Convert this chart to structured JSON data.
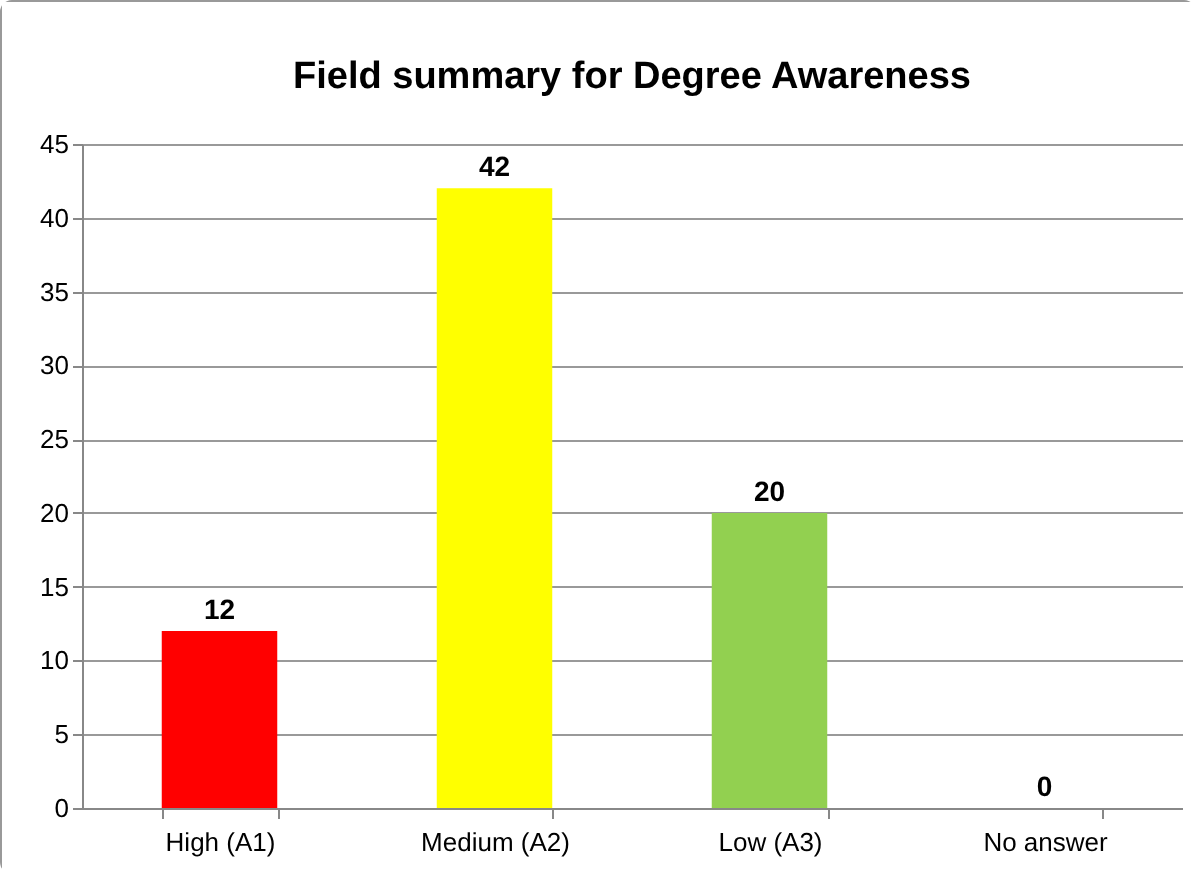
{
  "chart_data": {
    "type": "bar",
    "title": "Field summary  for Degree Awareness",
    "categories": [
      "High (A1)",
      "Medium (A2)",
      "Low (A3)",
      "No answer"
    ],
    "values": [
      12,
      42,
      20,
      0
    ],
    "colors": [
      "#ff0000",
      "#ffff00",
      "#92d050",
      "#4f81bd"
    ],
    "ylim": [
      0,
      45
    ],
    "yticks": [
      0,
      5,
      10,
      15,
      20,
      25,
      30,
      35,
      40,
      45
    ],
    "grid": "y",
    "data_labels": true
  }
}
